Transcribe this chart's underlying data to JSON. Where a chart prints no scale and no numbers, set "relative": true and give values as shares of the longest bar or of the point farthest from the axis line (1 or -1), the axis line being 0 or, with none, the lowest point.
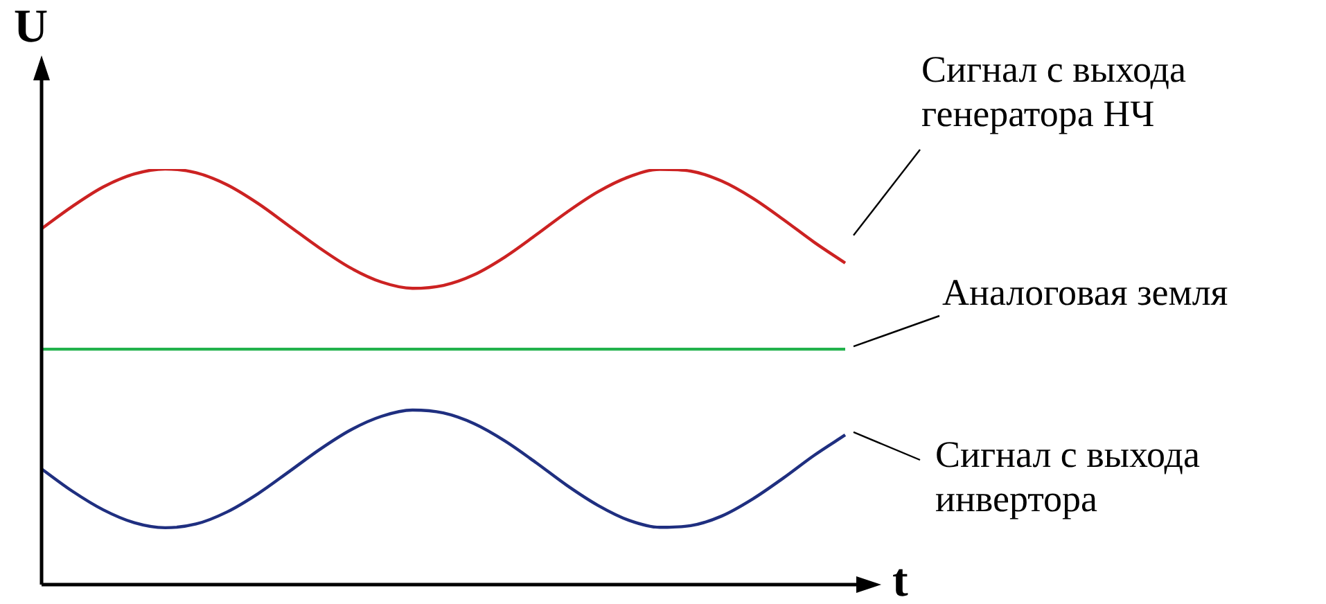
{
  "chart_data": {
    "type": "line",
    "relative": true,
    "xlabel": "t",
    "ylabel": "U",
    "categories": [
      null,
      null,
      null,
      null,
      null,
      null,
      null,
      null,
      null,
      null,
      null,
      null,
      null,
      null,
      null,
      null,
      null,
      null,
      null,
      null,
      null,
      null,
      null,
      null,
      null,
      null,
      null
    ],
    "series": [
      {
        "name": "Сигнал с выхода генератора НЧ",
        "color": "#cc2222",
        "values": [
          0.856,
          0.91,
          0.957,
          0.988,
          1.0,
          0.991,
          0.962,
          0.917,
          0.863,
          0.809,
          0.761,
          0.727,
          0.712,
          0.719,
          0.745,
          0.788,
          0.841,
          0.896,
          0.945,
          0.981,
          0.999,
          0.995,
          0.971,
          0.93,
          0.878,
          0.823,
          0.773
        ]
      },
      {
        "name": "Аналоговая земля",
        "color": "#22b24c",
        "values": [
          0.565,
          0.565,
          0.565,
          0.565,
          0.565,
          0.565,
          0.565,
          0.565,
          0.565,
          0.565,
          0.565,
          0.565,
          0.565,
          0.565,
          0.565,
          0.565,
          0.565,
          0.565,
          0.565,
          0.565,
          0.565,
          0.565,
          0.565,
          0.565,
          0.565,
          0.565,
          0.565
        ]
      },
      {
        "name": "Сигнал с выхода инвертора",
        "color": "#1f2f80",
        "values": [
          0.276,
          0.222,
          0.177,
          0.146,
          0.134,
          0.143,
          0.172,
          0.216,
          0.269,
          0.323,
          0.37,
          0.403,
          0.418,
          0.411,
          0.385,
          0.343,
          0.291,
          0.236,
          0.188,
          0.152,
          0.135,
          0.139,
          0.162,
          0.203,
          0.254,
          0.309,
          0.358
        ]
      }
    ]
  }
}
